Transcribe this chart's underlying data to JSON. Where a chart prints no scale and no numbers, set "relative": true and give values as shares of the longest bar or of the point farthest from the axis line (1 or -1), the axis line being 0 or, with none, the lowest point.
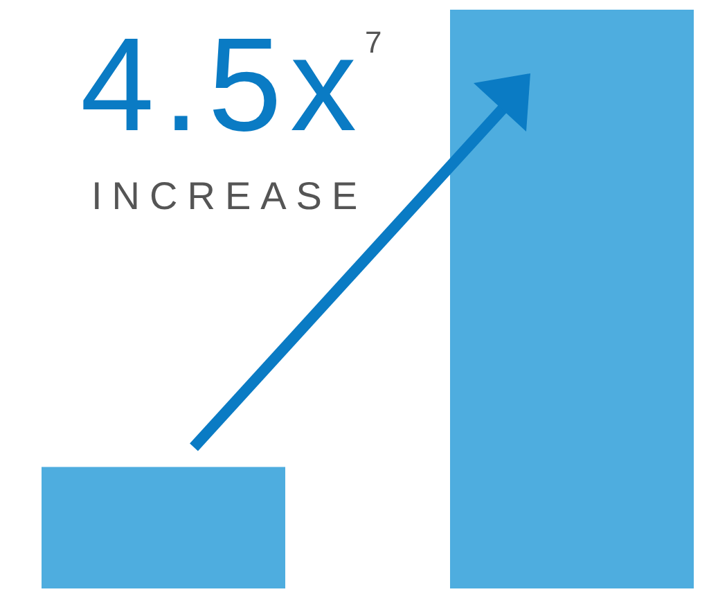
{
  "chart_data": {
    "type": "bar",
    "title": "4.5x$^{7}$",
    "subtitle": "INCREASE",
    "relative": true,
    "categories": [
      null,
      null
    ],
    "values": [
      0.21,
      1
    ],
    "color": "#4eaddf",
    "grid": false,
    "legend": false
  }
}
